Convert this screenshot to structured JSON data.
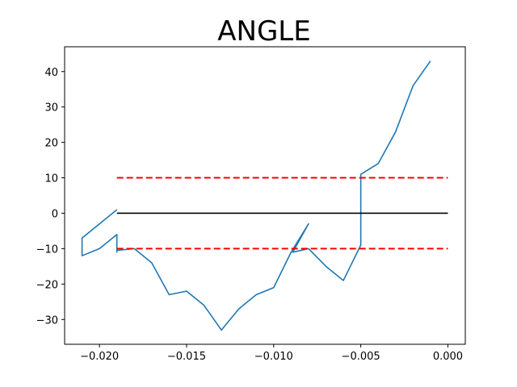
{
  "chart_data": {
    "type": "line",
    "title": "ANGLE",
    "xlabel": "",
    "ylabel": "",
    "xlim": [
      -0.022,
      0.001
    ],
    "ylim": [
      -37,
      47
    ],
    "x_ticks": [
      -0.02,
      -0.015,
      -0.01,
      -0.005,
      0.0
    ],
    "x_tick_labels": [
      "−0.020",
      "−0.015",
      "−0.010",
      "−0.005",
      "0.000"
    ],
    "y_ticks": [
      -30,
      -20,
      -10,
      0,
      10,
      20,
      30,
      40
    ],
    "y_tick_labels": [
      "−30",
      "−20",
      "−10",
      "0",
      "10",
      "20",
      "30",
      "40"
    ],
    "grid": false,
    "series": [
      {
        "style": "solid",
        "color": "#1f77b4",
        "x": [
          -0.019,
          -0.021,
          -0.021,
          -0.02,
          -0.019,
          -0.019,
          -0.019,
          -0.018,
          -0.017,
          -0.016,
          -0.015,
          -0.014,
          -0.013,
          -0.012,
          -0.011,
          -0.01,
          -0.009,
          -0.008,
          -0.0089,
          -0.008,
          -0.007,
          -0.006,
          -0.005,
          -0.005,
          -0.004,
          -0.003,
          -0.002,
          -0.001
        ],
        "y": [
          1,
          -7,
          -12,
          -10,
          -6,
          -11,
          -10.5,
          -10,
          -14,
          -23,
          -22,
          -26,
          -33,
          -27,
          -23,
          -21,
          -11,
          -3,
          -11,
          -10,
          -15,
          -19,
          -9,
          11,
          14,
          23,
          36,
          43
        ]
      },
      {
        "style": "solid",
        "color": "#000000",
        "x": [
          -0.019,
          0.0
        ],
        "y": [
          0,
          0
        ]
      },
      {
        "style": "dashed",
        "color": "#ff0000",
        "x": [
          -0.019,
          0.0
        ],
        "y": [
          10,
          10
        ]
      },
      {
        "style": "dashed",
        "color": "#ff0000",
        "x": [
          -0.019,
          0.0
        ],
        "y": [
          -10,
          -10
        ]
      }
    ]
  }
}
